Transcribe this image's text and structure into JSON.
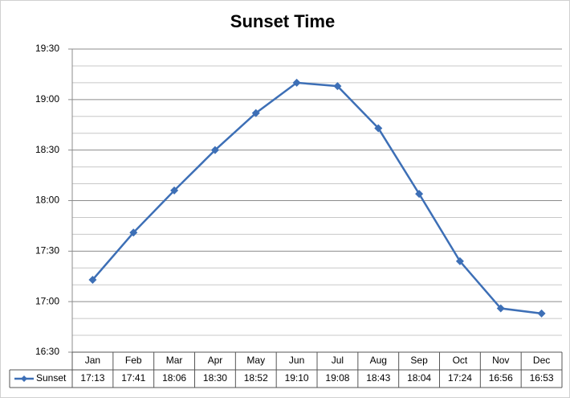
{
  "chart_data": {
    "type": "line",
    "title": "Sunset Time",
    "categories": [
      "Jan",
      "Feb",
      "Mar",
      "Apr",
      "May",
      "Jun",
      "Jul",
      "Aug",
      "Sep",
      "Oct",
      "Nov",
      "Dec"
    ],
    "series": [
      {
        "name": "Sunset",
        "color": "#3d6fb6",
        "values": [
          1033,
          1061,
          1086,
          1110,
          1132,
          1150,
          1148,
          1123,
          1084,
          1044,
          1016,
          1013
        ],
        "value_labels": [
          "17:13",
          "17:41",
          "18:06",
          "18:30",
          "18:52",
          "19:10",
          "19:08",
          "18:43",
          "18:04",
          "17:24",
          "16:56",
          "16:53"
        ]
      }
    ],
    "ylim": [
      990,
      1170
    ],
    "yticks": [
      {
        "value": 990,
        "label": "16:30"
      },
      {
        "value": 1020,
        "label": "17:00"
      },
      {
        "value": 1050,
        "label": "17:30"
      },
      {
        "value": 1080,
        "label": "18:00"
      },
      {
        "value": 1110,
        "label": "18:30"
      },
      {
        "value": 1140,
        "label": "19:00"
      },
      {
        "value": 1170,
        "label": "19:30"
      }
    ],
    "yticks_minor": [
      1000,
      1010,
      1030,
      1040,
      1060,
      1070,
      1090,
      1100,
      1120,
      1130,
      1150,
      1160
    ],
    "grid": true,
    "data_table": true
  }
}
